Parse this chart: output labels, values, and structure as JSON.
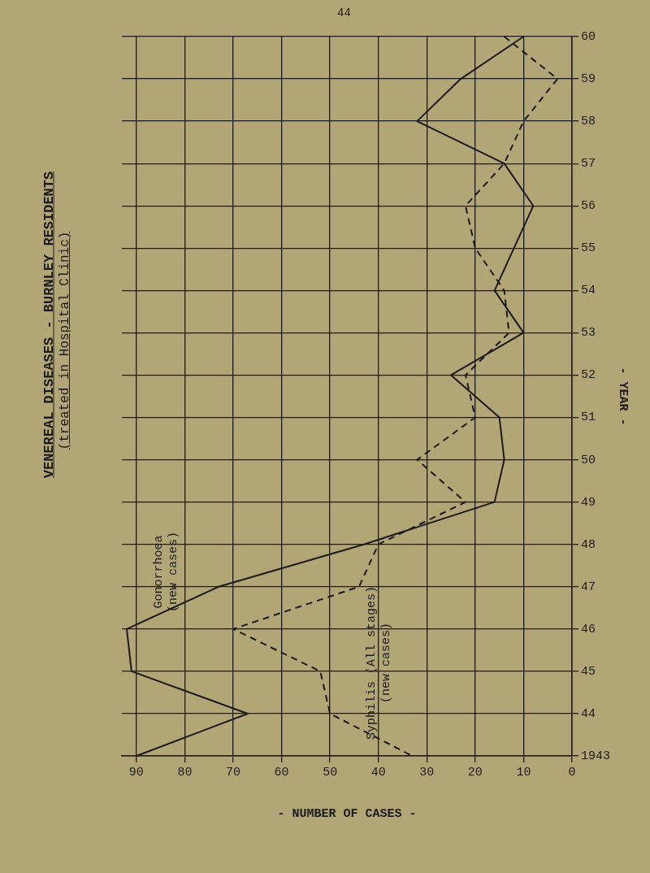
{
  "chart_data": {
    "type": "line",
    "orientation": "horizontal",
    "title": "VENEREAL DISEASES - BURNLEY RESIDENTS",
    "subtitle": "(treated in Hospital Clinic)",
    "xlabel": "- NUMBER OF CASES -",
    "ylabel": "- YEAR -",
    "annotations": [
      "44"
    ],
    "categories": [
      "60",
      "59",
      "58",
      "57",
      "56",
      "55",
      "54",
      "53",
      "52",
      "51",
      "50",
      "49",
      "48",
      "47",
      "46",
      "45",
      "44",
      "1943"
    ],
    "series": [
      {
        "name": "Gonorrhoea (new cases)",
        "color": "#1a1a1a",
        "line_style": "solid",
        "values": [
          10,
          23,
          32,
          14,
          8,
          12,
          16,
          10,
          25,
          15,
          14,
          16,
          43,
          73,
          92,
          91,
          67,
          90
        ]
      },
      {
        "name": "Syphilis (All stages) (new cases)",
        "color": "#1a1a1a",
        "line_style": "dashed",
        "values": [
          14,
          3,
          10,
          14,
          22,
          20,
          14,
          13,
          22,
          20,
          32,
          22,
          40,
          44,
          70,
          52,
          50,
          33
        ]
      }
    ],
    "xlim": [
      93,
      0
    ],
    "xticks": [
      0,
      10,
      20,
      30,
      40,
      50,
      60,
      70,
      80,
      90
    ],
    "grid": true,
    "legend": false,
    "marker": "none"
  }
}
